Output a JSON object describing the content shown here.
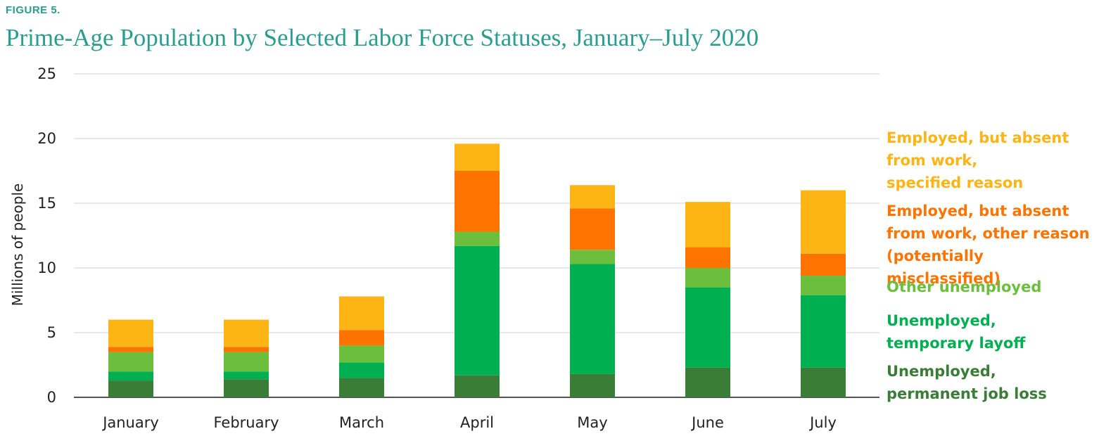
{
  "figure_label": "FIGURE 5.",
  "chart_data": {
    "type": "bar",
    "stacked": true,
    "title": "Prime-Age Population by Selected Labor Force Statuses, January–July 2020",
    "ylabel": "Millions of people",
    "xlabel": "",
    "ylim": [
      0,
      25
    ],
    "yticks": [
      0,
      5,
      10,
      15,
      20,
      25
    ],
    "grid": true,
    "legend_position": "right",
    "categories": [
      "January",
      "February",
      "March",
      "April",
      "May",
      "June",
      "July"
    ],
    "series": [
      {
        "name": "Unemployed, permanent job loss",
        "color": "#3a7d36",
        "values": [
          1.3,
          1.4,
          1.5,
          1.7,
          1.8,
          2.3,
          2.3
        ]
      },
      {
        "name": "Unemployed, temporary layoff",
        "color": "#00b050",
        "values": [
          0.7,
          0.6,
          1.2,
          10.0,
          8.5,
          6.2,
          5.6
        ]
      },
      {
        "name": "Other unemployed",
        "color": "#6cbf3c",
        "values": [
          1.5,
          1.5,
          1.3,
          1.1,
          1.1,
          1.5,
          1.5
        ]
      },
      {
        "name": "Employed, but absent from work, other reason (potentially misclassified)",
        "color": "#ff7300",
        "values": [
          0.4,
          0.4,
          1.2,
          4.7,
          3.2,
          1.6,
          1.7
        ]
      },
      {
        "name": "Employed, but absent from work, specified reason",
        "color": "#fdb515",
        "values": [
          2.1,
          2.1,
          2.6,
          2.1,
          1.8,
          3.5,
          4.9
        ]
      }
    ]
  },
  "legend": [
    {
      "text": "Employed, but absent\nfrom work,\nspecified reason",
      "color": "#fdb515"
    },
    {
      "text": "Employed, but absent\nfrom work, other reason\n(potentially misclassified)",
      "color": "#ff7300"
    },
    {
      "text": "Other unemployed",
      "color": "#6cbf3c"
    },
    {
      "text": "Unemployed,\ntemporary layoff",
      "color": "#00b050"
    },
    {
      "text": "Unemployed,\npermanent job loss",
      "color": "#3a7d36"
    }
  ]
}
